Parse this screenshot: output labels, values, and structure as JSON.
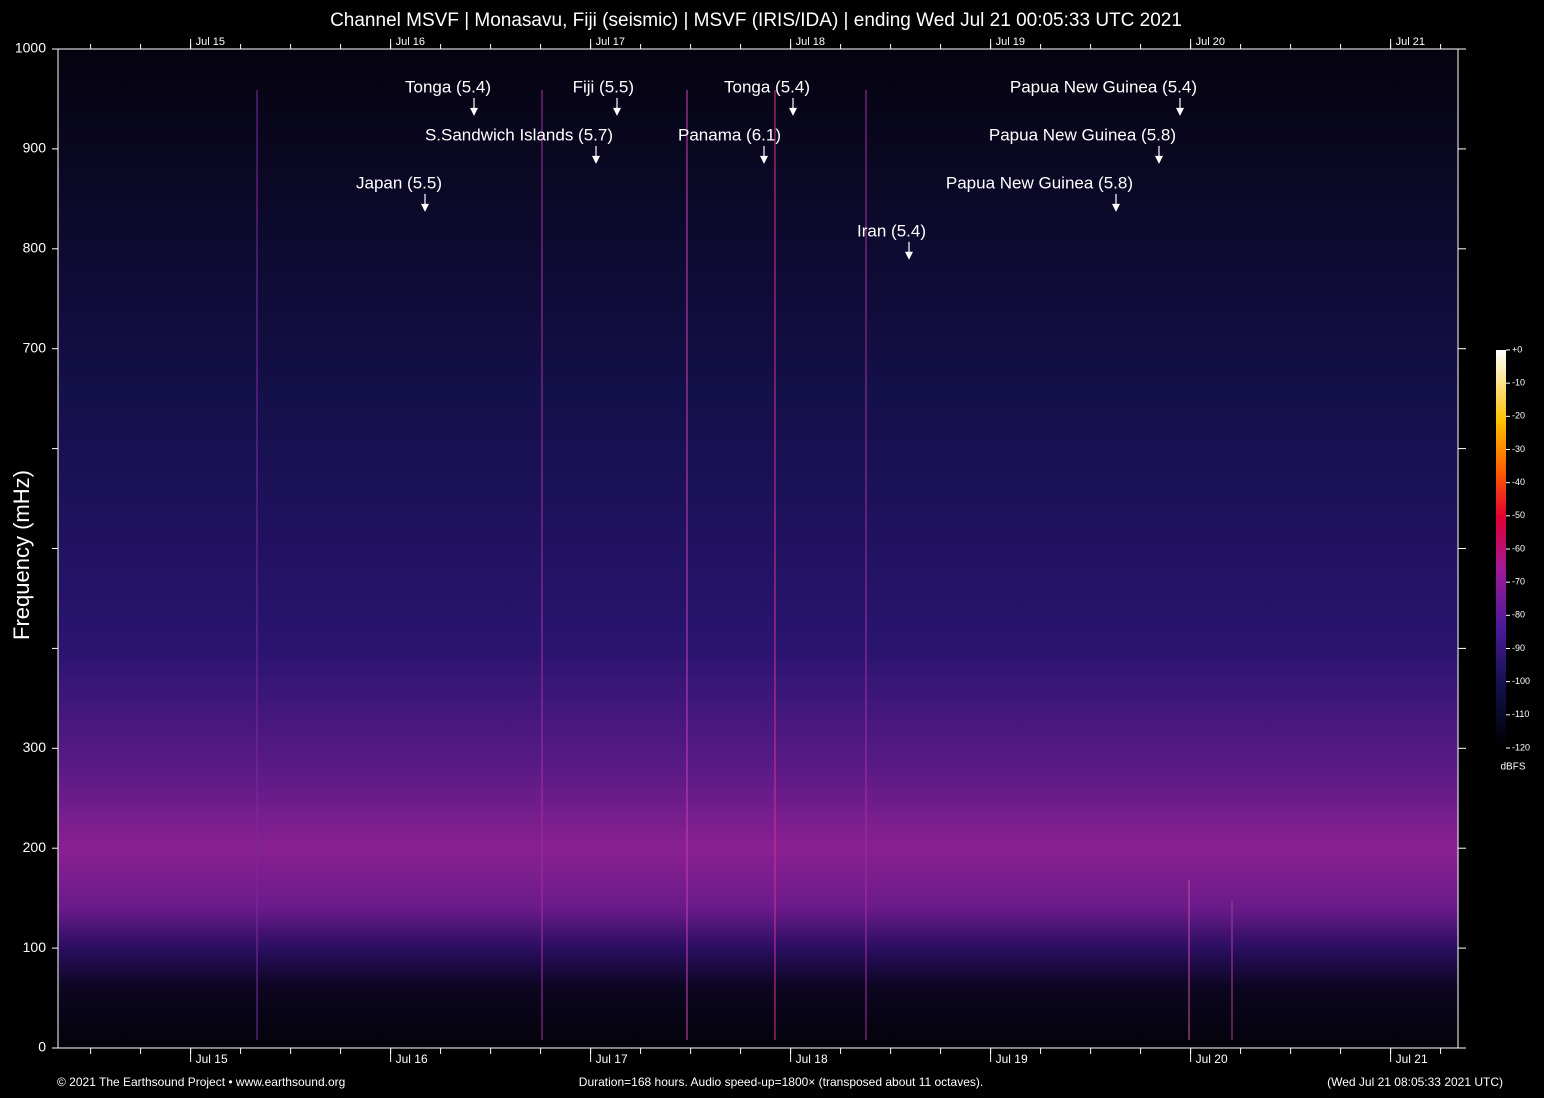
{
  "chart_data": {
    "type": "spectrogram",
    "title": "Channel MSVF | Monasavu, Fiji (seismic) | MSVF (IRIS/IDA) | ending Wed Jul 21 00:05:33 UTC 2021",
    "y_label": "Frequency (mHz)",
    "xlim": [
      14.337,
      21.337
    ],
    "xticks": [
      {
        "value": 15,
        "label": "Jul 15"
      },
      {
        "value": 16,
        "label": "Jul 16"
      },
      {
        "value": 17,
        "label": "Jul 17"
      },
      {
        "value": 18,
        "label": "Jul 18"
      },
      {
        "value": 19,
        "label": "Jul 19"
      },
      {
        "value": 20,
        "label": "Jul 20"
      },
      {
        "value": 21,
        "label": "Jul 21"
      }
    ],
    "ylim": [
      0,
      1000
    ],
    "yticks": [
      0,
      100,
      200,
      300,
      700,
      800,
      900,
      1000
    ],
    "yminor_ticks": [
      400,
      500,
      600
    ],
    "annotations": [
      {
        "text": "Tonga (5.4)",
        "x": 16.417,
        "y": 933
      },
      {
        "text": "Fiji (5.5)",
        "x": 17.132,
        "y": 933
      },
      {
        "text": "Tonga (5.4)",
        "x": 18.012,
        "y": 933
      },
      {
        "text": "Papua New Guinea (5.4)",
        "x": 19.947,
        "y": 933
      },
      {
        "text": "S.Sandwich Islands (5.7)",
        "x": 17.027,
        "y": 885
      },
      {
        "text": "Panama (6.1)",
        "x": 17.867,
        "y": 885
      },
      {
        "text": "Papua New Guinea (5.8)",
        "x": 19.842,
        "y": 885
      },
      {
        "text": "Japan (5.5)",
        "x": 16.172,
        "y": 837
      },
      {
        "text": "Papua New Guinea (5.8)",
        "x": 19.627,
        "y": 837
      },
      {
        "text": "Iran (5.4)",
        "x": 18.592,
        "y": 789
      }
    ],
    "colorbar": {
      "label": "dBFS",
      "lim": [
        -120,
        0
      ],
      "ticks": [
        {
          "value": 0,
          "label": "+0"
        },
        -10,
        -20,
        -30,
        -40,
        -50,
        -60,
        -70,
        -80,
        -90,
        -100,
        -110,
        -120
      ]
    },
    "footer_left": "© 2021 The Earthsound Project • www.earthsound.org",
    "footer_center": "Duration=168 hours. Audio speed-up=1800× (transposed about 11 octaves).",
    "footer_right": "(Wed Jul 21 08:05:33 2021 UTC)"
  }
}
